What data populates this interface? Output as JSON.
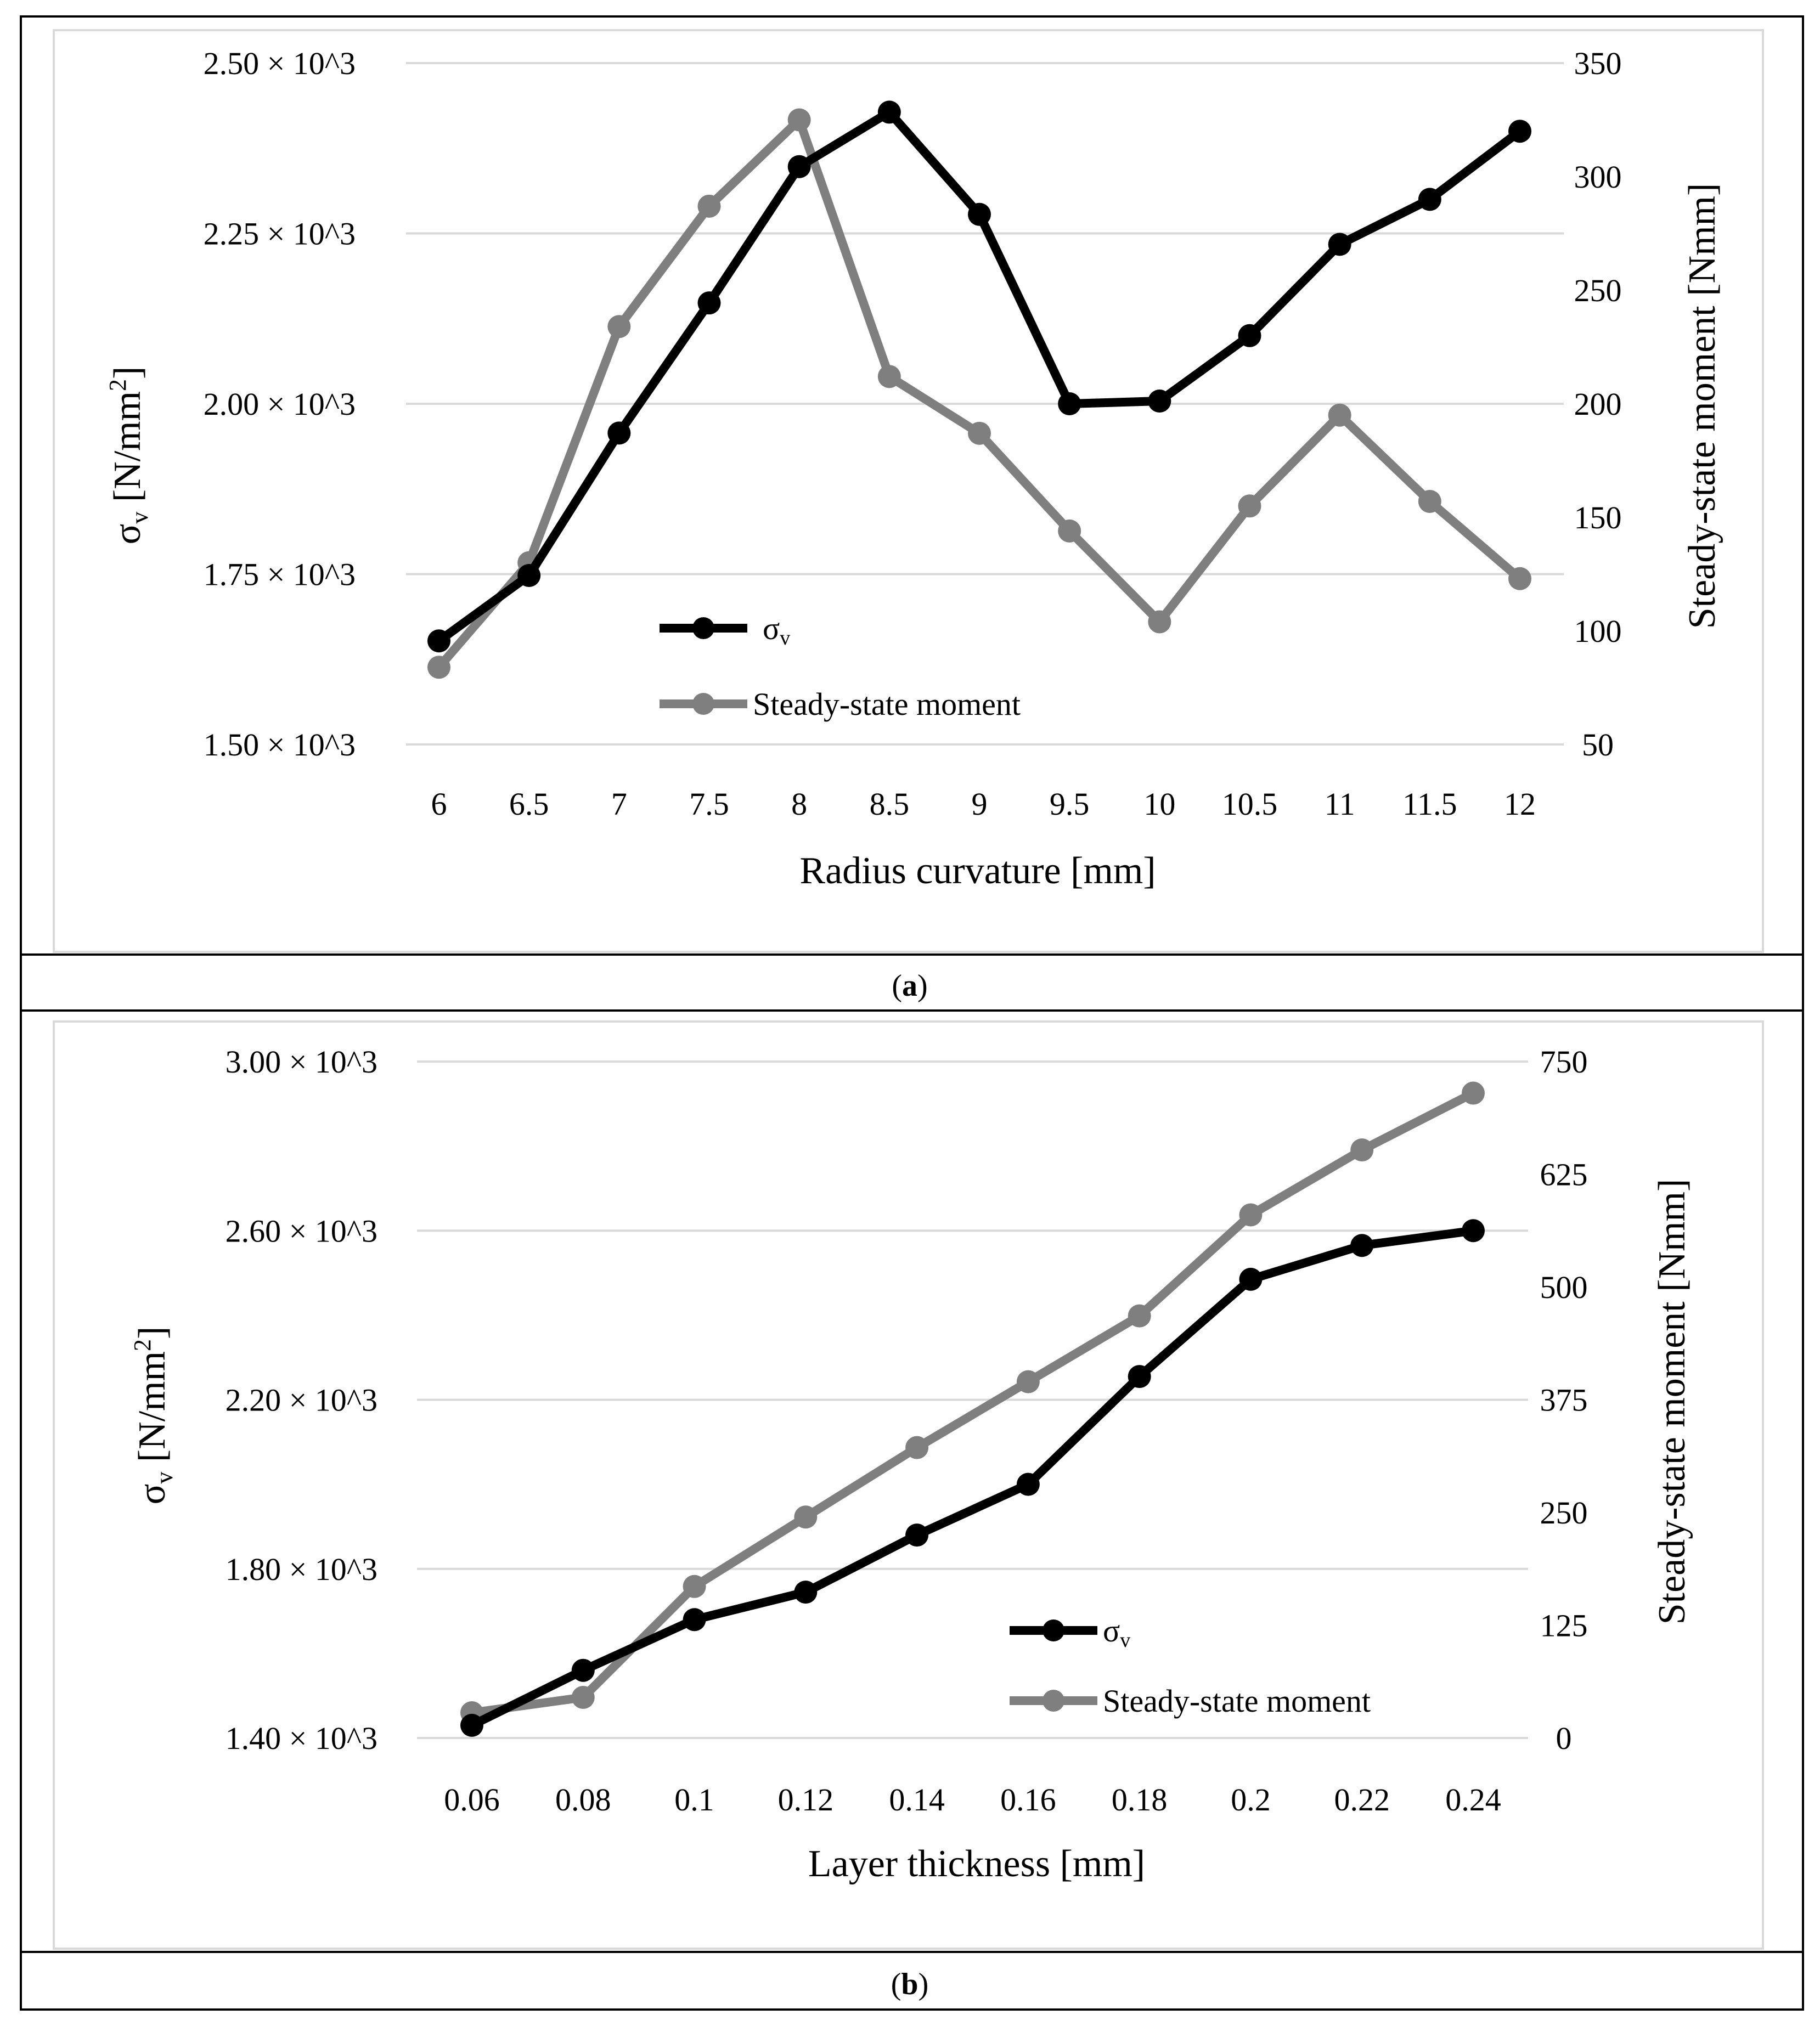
{
  "colors": {
    "sigma": "#000000",
    "moment": "#7f7f7f",
    "grid": "#d9d9d9",
    "frame": "#000000"
  },
  "captions": {
    "a": "a",
    "b": "b"
  },
  "chart_data": [
    {
      "type": "line",
      "panel": "a",
      "title": "",
      "xlabel": "Radius curvature [mm]",
      "ylabel_sym": "σ",
      "ylabel_sub": "v",
      "ylabel_unit": "[N/mm",
      "ylabel_sup": "2",
      "ylabel_end": "]",
      "y2label": "Steady-state moment [Nmm]",
      "categories": [
        "6",
        "6.5",
        "7",
        "7.5",
        "8",
        "8.5",
        "9",
        "9.5",
        "10",
        "10.5",
        "11",
        "11.5",
        "12"
      ],
      "ylim": [
        1500,
        2500
      ],
      "yticks": [
        1500,
        1750,
        2000,
        2250,
        2500
      ],
      "ytick_labels": [
        "1.50 × 10^3",
        "1.75 × 10^3",
        "2.00 × 10^3",
        "2.25 × 10^3",
        "2.50 × 10^3"
      ],
      "y2lim": [
        50,
        350
      ],
      "y2ticks": [
        50,
        100,
        150,
        200,
        250,
        300,
        350
      ],
      "y2tick_labels": [
        "50",
        "100",
        "150",
        "200",
        "250",
        "300",
        "350"
      ],
      "series": [
        {
          "name": "σ",
          "name_sub": "v",
          "axis": "left",
          "color": "#000000",
          "values": [
            1652,
            1748,
            1957,
            2148,
            2348,
            2428,
            2278,
            2000,
            2004,
            2100,
            2234,
            2300,
            2400
          ]
        },
        {
          "name": "Steady-state moment",
          "axis": "right",
          "color": "#7f7f7f",
          "values": [
            84,
            130,
            234,
            287,
            325,
            212,
            187,
            144,
            104,
            155,
            195,
            157,
            123
          ]
        }
      ],
      "legend": "center-left"
    },
    {
      "type": "line",
      "panel": "b",
      "title": "",
      "xlabel": "Layer thickness [mm]",
      "ylabel_sym": "σ",
      "ylabel_sub": "v",
      "ylabel_unit": "[N/mm",
      "ylabel_sup": "2",
      "ylabel_end": "]",
      "y2label": "Steady-state moment [Nmm]",
      "categories": [
        "0.06",
        "0.08",
        "0.1",
        "0.12",
        "0.14",
        "0.16",
        "0.18",
        "0.2",
        "0.22",
        "0.24"
      ],
      "ylim": [
        1400,
        3000
      ],
      "yticks": [
        1400,
        1800,
        2200,
        2600,
        3000
      ],
      "ytick_labels": [
        "1.40 × 10^3",
        "1.80 × 10^3",
        "2.20 × 10^3",
        "2.60 × 10^3",
        "3.00 × 10^3"
      ],
      "y2lim": [
        0,
        750
      ],
      "y2ticks": [
        0,
        125,
        250,
        375,
        500,
        625,
        750
      ],
      "y2tick_labels": [
        "0",
        "125",
        "250",
        "375",
        "500",
        "625",
        "750"
      ],
      "series": [
        {
          "name": "σ",
          "name_sub": "v",
          "axis": "left",
          "color": "#000000",
          "values": [
            1430,
            1560,
            1680,
            1745,
            1880,
            2000,
            2255,
            2485,
            2565,
            2600
          ]
        },
        {
          "name": "Steady-state moment",
          "axis": "right",
          "color": "#7f7f7f",
          "values": [
            28,
            45,
            168,
            245,
            322,
            395,
            468,
            580,
            652,
            715
          ]
        }
      ],
      "legend": "lower-right"
    }
  ]
}
